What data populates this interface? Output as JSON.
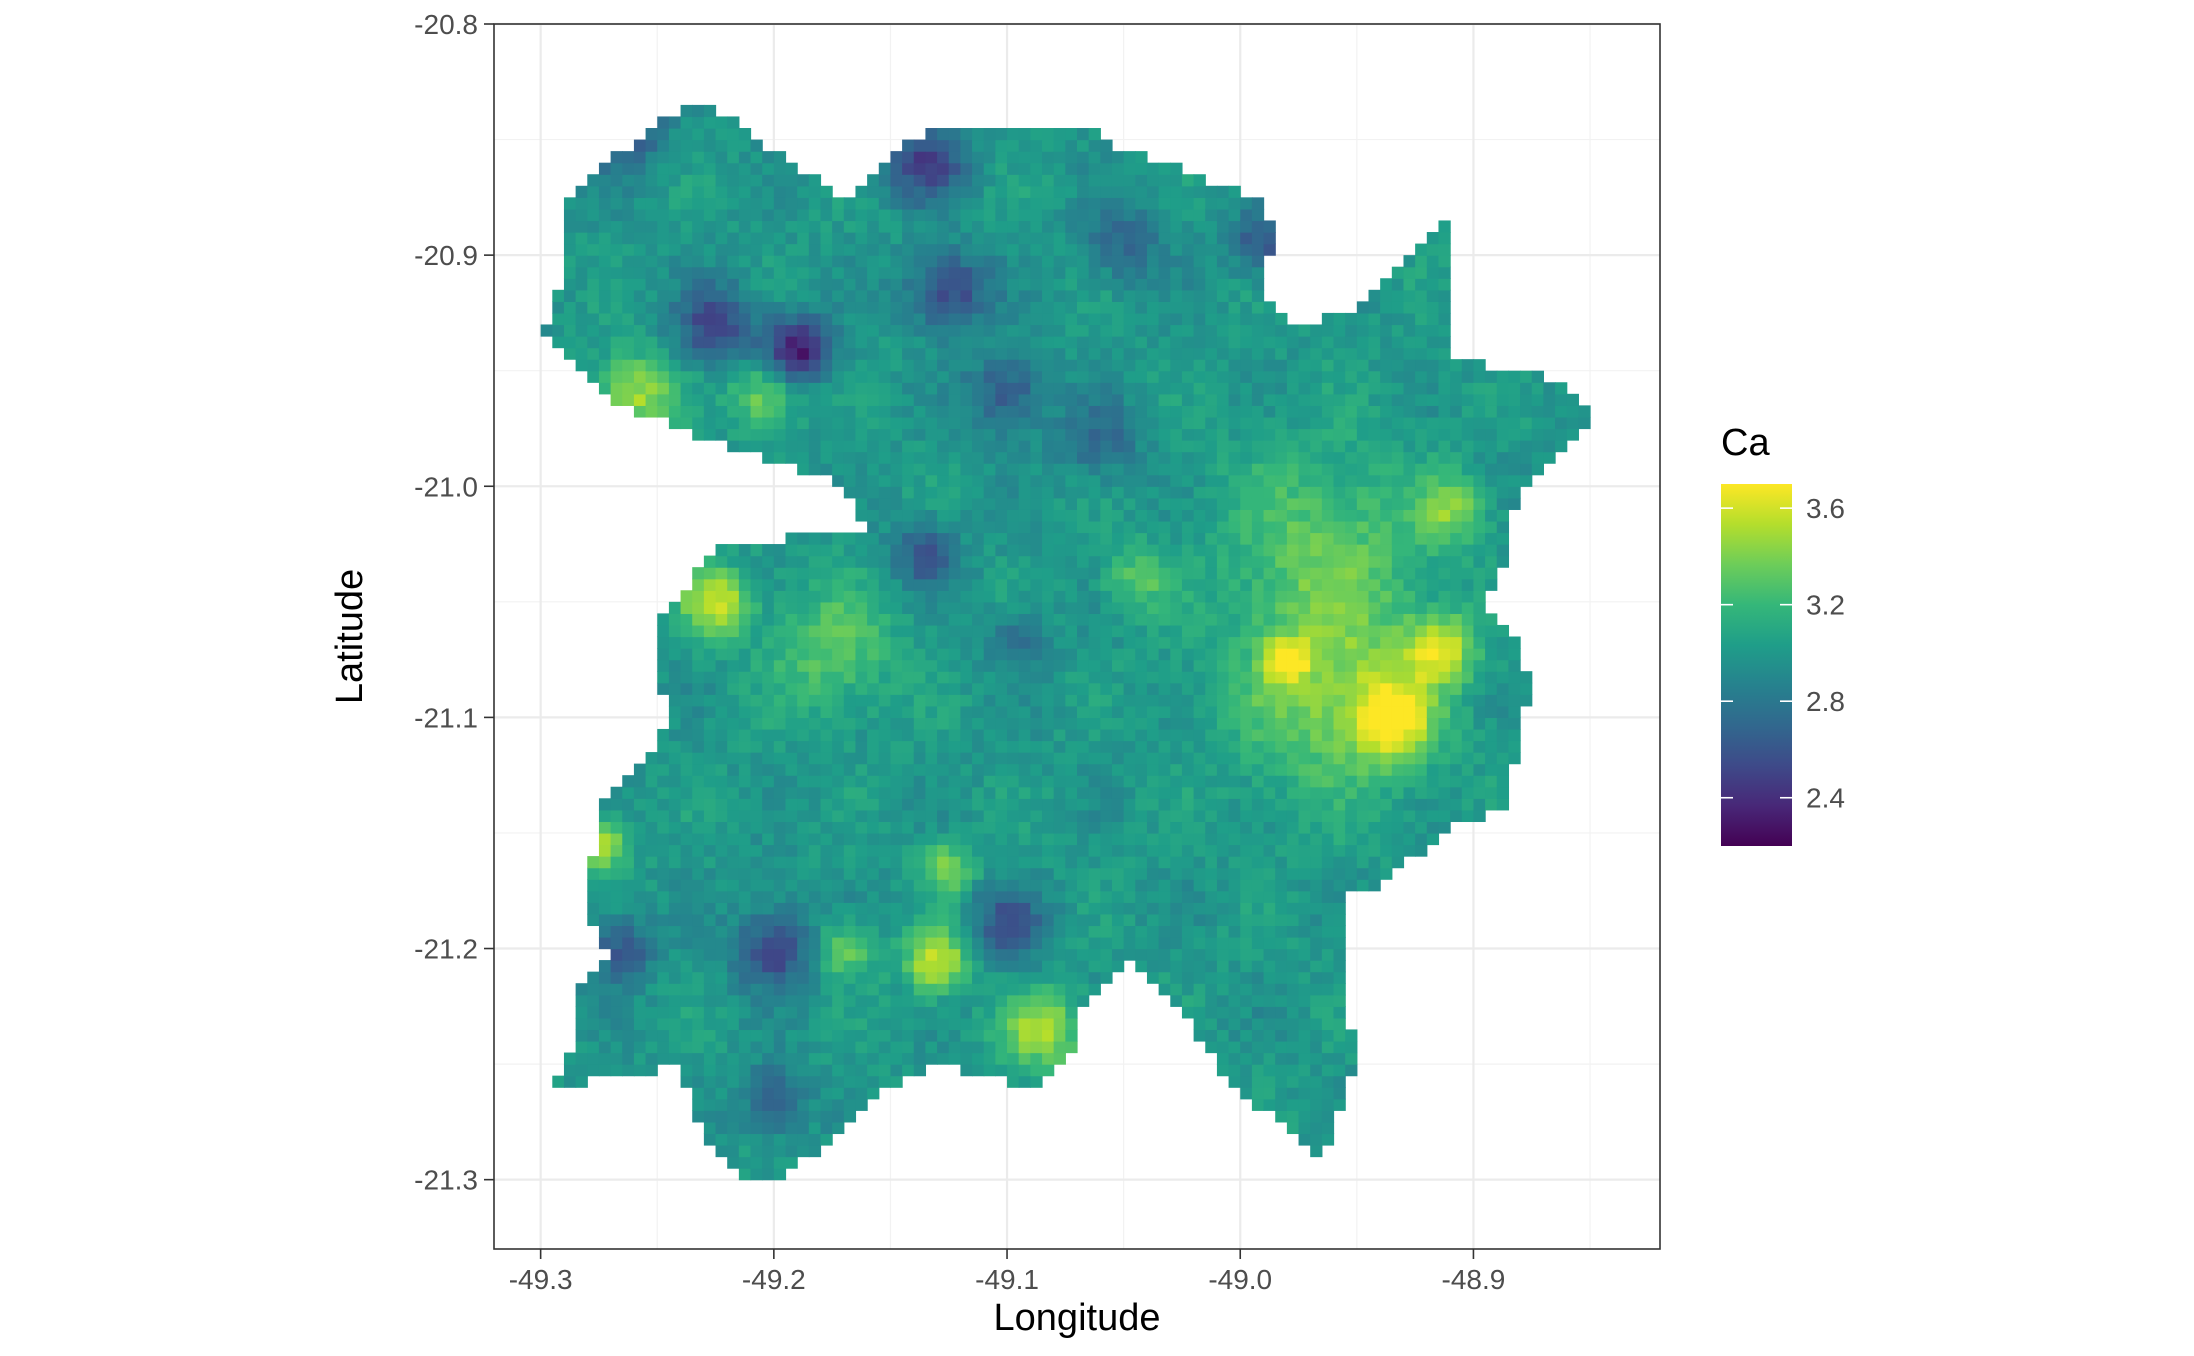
{
  "chart_data": {
    "type": "heatmap",
    "title": "",
    "xlabel": "Longitude",
    "ylabel": "Latitude",
    "xlim": [
      -49.32,
      -48.82
    ],
    "ylim": [
      -21.33,
      -20.8
    ],
    "x_ticks": [
      -49.3,
      -49.2,
      -49.1,
      -49.0,
      -48.9
    ],
    "x_tick_labels": [
      "-49.3",
      "-49.2",
      "-49.1",
      "-49.0",
      "-48.9"
    ],
    "y_ticks": [
      -20.8,
      -20.9,
      -21.0,
      -21.1,
      -21.2,
      -21.3
    ],
    "y_tick_labels": [
      "-20.8",
      "-20.9",
      "-21.0",
      "-21.1",
      "-21.2",
      "-21.3"
    ],
    "grid": true,
    "legend": {
      "title": "Ca",
      "position": "right",
      "colormap": "viridis",
      "range": [
        2.2,
        3.7
      ],
      "ticks": [
        3.6,
        3.2,
        2.8,
        2.4
      ],
      "tick_labels": [
        "3.6",
        "3.2",
        "2.8",
        "2.4"
      ]
    },
    "cell_size_deg": 0.005,
    "base_value": 3.0,
    "region_polygon": [
      [
        -49.29,
        -20.875
      ],
      [
        -49.245,
        -20.84
      ],
      [
        -49.235,
        -20.835
      ],
      [
        -49.22,
        -20.84
      ],
      [
        -49.2,
        -20.855
      ],
      [
        -49.17,
        -20.875
      ],
      [
        -49.14,
        -20.85
      ],
      [
        -49.13,
        -20.845
      ],
      [
        -49.06,
        -20.845
      ],
      [
        -49.05,
        -20.855
      ],
      [
        -49.03,
        -20.86
      ],
      [
        -49.01,
        -20.87
      ],
      [
        -48.99,
        -20.875
      ],
      [
        -48.985,
        -20.89
      ],
      [
        -48.99,
        -20.915
      ],
      [
        -48.975,
        -20.93
      ],
      [
        -48.955,
        -20.925
      ],
      [
        -48.92,
        -20.895
      ],
      [
        -48.915,
        -20.89
      ],
      [
        -48.91,
        -20.885
      ],
      [
        -48.91,
        -20.945
      ],
      [
        -48.86,
        -20.955
      ],
      [
        -48.85,
        -20.97
      ],
      [
        -48.85,
        -20.975
      ],
      [
        -48.88,
        -21.0
      ],
      [
        -48.89,
        -21.045
      ],
      [
        -48.895,
        -21.05
      ],
      [
        -48.88,
        -21.065
      ],
      [
        -48.875,
        -21.09
      ],
      [
        -48.88,
        -21.1
      ],
      [
        -48.885,
        -21.14
      ],
      [
        -48.905,
        -21.145
      ],
      [
        -48.925,
        -21.16
      ],
      [
        -48.945,
        -21.175
      ],
      [
        -48.955,
        -21.175
      ],
      [
        -48.955,
        -21.22
      ],
      [
        -48.95,
        -21.25
      ],
      [
        -48.965,
        -21.29
      ],
      [
        -48.975,
        -21.28
      ],
      [
        -48.99,
        -21.27
      ],
      [
        -49.0,
        -21.26
      ],
      [
        -49.01,
        -21.25
      ],
      [
        -49.03,
        -21.22
      ],
      [
        -49.04,
        -21.21
      ],
      [
        -49.05,
        -21.205
      ],
      [
        -49.07,
        -21.23
      ],
      [
        -49.07,
        -21.245
      ],
      [
        -49.09,
        -21.26
      ],
      [
        -49.11,
        -21.255
      ],
      [
        -49.13,
        -21.25
      ],
      [
        -49.15,
        -21.26
      ],
      [
        -49.17,
        -21.28
      ],
      [
        -49.2,
        -21.3
      ],
      [
        -49.21,
        -21.3
      ],
      [
        -49.23,
        -21.28
      ],
      [
        -49.24,
        -21.25
      ],
      [
        -49.26,
        -21.255
      ],
      [
        -49.295,
        -21.26
      ],
      [
        -49.285,
        -21.24
      ],
      [
        -49.285,
        -21.22
      ],
      [
        -49.27,
        -21.205
      ],
      [
        -49.28,
        -21.185
      ],
      [
        -49.275,
        -21.14
      ],
      [
        -49.27,
        -21.135
      ],
      [
        -49.265,
        -21.13
      ],
      [
        -49.26,
        -21.125
      ],
      [
        -49.255,
        -21.12
      ],
      [
        -49.25,
        -21.115
      ],
      [
        -49.245,
        -21.1
      ],
      [
        -49.25,
        -21.08
      ],
      [
        -49.25,
        -21.06
      ],
      [
        -49.24,
        -21.05
      ],
      [
        -49.235,
        -21.04
      ],
      [
        -49.225,
        -21.025
      ],
      [
        -49.16,
        -21.02
      ],
      [
        -49.17,
        -21.0
      ],
      [
        -49.2,
        -20.99
      ],
      [
        -49.23,
        -20.98
      ],
      [
        -49.25,
        -20.97
      ],
      [
        -49.27,
        -20.965
      ],
      [
        -49.285,
        -20.95
      ],
      [
        -49.3,
        -20.935
      ],
      [
        -49.29,
        -20.91
      ],
      [
        -49.29,
        -20.875
      ]
    ],
    "anomalies": [
      {
        "lon": -49.265,
        "lat": -20.845,
        "value": 2.5,
        "radius": 0.012
      },
      {
        "lon": -49.225,
        "lat": -20.93,
        "value": 2.5,
        "radius": 0.012
      },
      {
        "lon": -49.19,
        "lat": -20.94,
        "value": 2.3,
        "radius": 0.01
      },
      {
        "lon": -49.135,
        "lat": -20.86,
        "value": 2.5,
        "radius": 0.012
      },
      {
        "lon": -49.125,
        "lat": -20.915,
        "value": 2.5,
        "radius": 0.012
      },
      {
        "lon": -49.05,
        "lat": -20.895,
        "value": 2.7,
        "radius": 0.012
      },
      {
        "lon": -48.99,
        "lat": -20.895,
        "value": 2.6,
        "radius": 0.01
      },
      {
        "lon": -49.1,
        "lat": -20.96,
        "value": 2.6,
        "radius": 0.012
      },
      {
        "lon": -49.135,
        "lat": -21.03,
        "value": 2.6,
        "radius": 0.01
      },
      {
        "lon": -49.06,
        "lat": -20.98,
        "value": 2.7,
        "radius": 0.012
      },
      {
        "lon": -49.2,
        "lat": -21.2,
        "value": 2.5,
        "radius": 0.012
      },
      {
        "lon": -49.265,
        "lat": -21.2,
        "value": 2.6,
        "radius": 0.01
      },
      {
        "lon": -49.1,
        "lat": -21.19,
        "value": 2.6,
        "radius": 0.012
      },
      {
        "lon": -49.2,
        "lat": -21.265,
        "value": 2.6,
        "radius": 0.01
      },
      {
        "lon": -49.26,
        "lat": -20.96,
        "value": 3.5,
        "radius": 0.012
      },
      {
        "lon": -49.205,
        "lat": -20.96,
        "value": 3.4,
        "radius": 0.01
      },
      {
        "lon": -49.225,
        "lat": -21.05,
        "value": 3.6,
        "radius": 0.01
      },
      {
        "lon": -49.175,
        "lat": -21.07,
        "value": 3.3,
        "radius": 0.02
      },
      {
        "lon": -48.96,
        "lat": -21.09,
        "value": 3.4,
        "radius": 0.03
      },
      {
        "lon": -48.935,
        "lat": -21.1,
        "value": 3.6,
        "radius": 0.012
      },
      {
        "lon": -48.915,
        "lat": -21.07,
        "value": 3.6,
        "radius": 0.01
      },
      {
        "lon": -48.965,
        "lat": -21.025,
        "value": 3.3,
        "radius": 0.03
      },
      {
        "lon": -48.98,
        "lat": -21.075,
        "value": 3.7,
        "radius": 0.006
      },
      {
        "lon": -48.91,
        "lat": -21.01,
        "value": 3.4,
        "radius": 0.01
      },
      {
        "lon": -49.045,
        "lat": -21.04,
        "value": 3.3,
        "radius": 0.01
      },
      {
        "lon": -49.13,
        "lat": -21.205,
        "value": 3.6,
        "radius": 0.01
      },
      {
        "lon": -49.085,
        "lat": -21.235,
        "value": 3.5,
        "radius": 0.012
      },
      {
        "lon": -49.275,
        "lat": -21.155,
        "value": 3.6,
        "radius": 0.008
      },
      {
        "lon": -49.125,
        "lat": -21.165,
        "value": 3.4,
        "radius": 0.008
      },
      {
        "lon": -49.17,
        "lat": -21.2,
        "value": 3.4,
        "radius": 0.008
      },
      {
        "lon": -49.095,
        "lat": -21.065,
        "value": 2.7,
        "radius": 0.008
      }
    ]
  }
}
